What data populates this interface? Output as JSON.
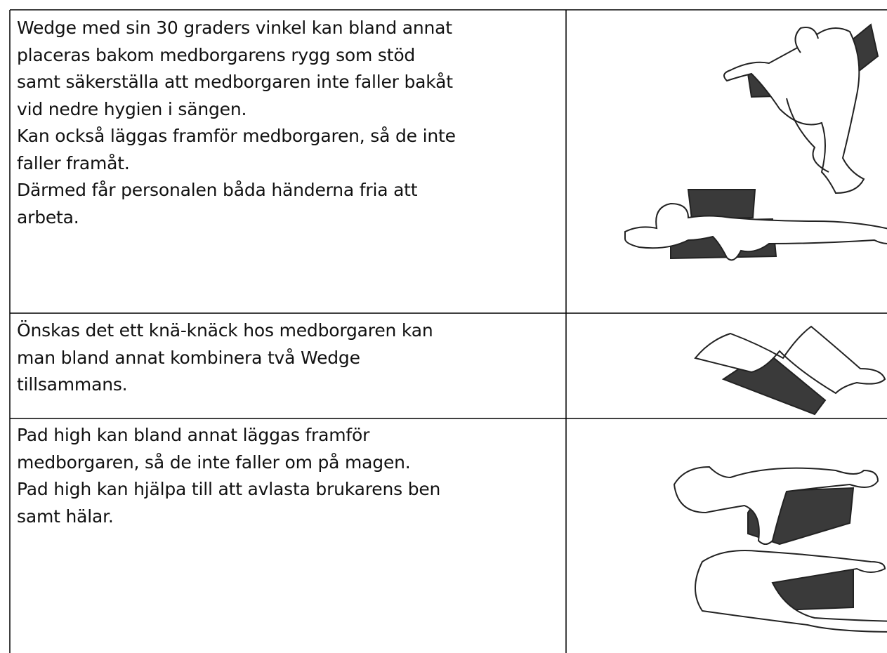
{
  "table": {
    "rows": [
      {
        "lines": [
          "Wedge med sin 30 graders vinkel kan bland annat",
          "placeras bakom medborgarens rygg som stöd",
          "samt säkerställa att medborgaren inte faller bakåt",
          "vid nedre hygien i sängen.",
          "Kan också läggas framför medborgaren, så de inte",
          "faller framåt.",
          "Därmed får personalen båda händerna fria att",
          "arbeta."
        ]
      },
      {
        "lines": [
          "Önskas det ett knä-knäck hos medborgaren kan",
          "man bland annat kombinera två Wedge",
          "tillsammans."
        ]
      },
      {
        "lines": [
          "Pad high kan bland annat läggas framför",
          "medborgaren, så de inte faller om på magen.",
          "Pad high kan hjälpa till att avlasta brukarens ben",
          "samt hälar."
        ]
      }
    ]
  }
}
